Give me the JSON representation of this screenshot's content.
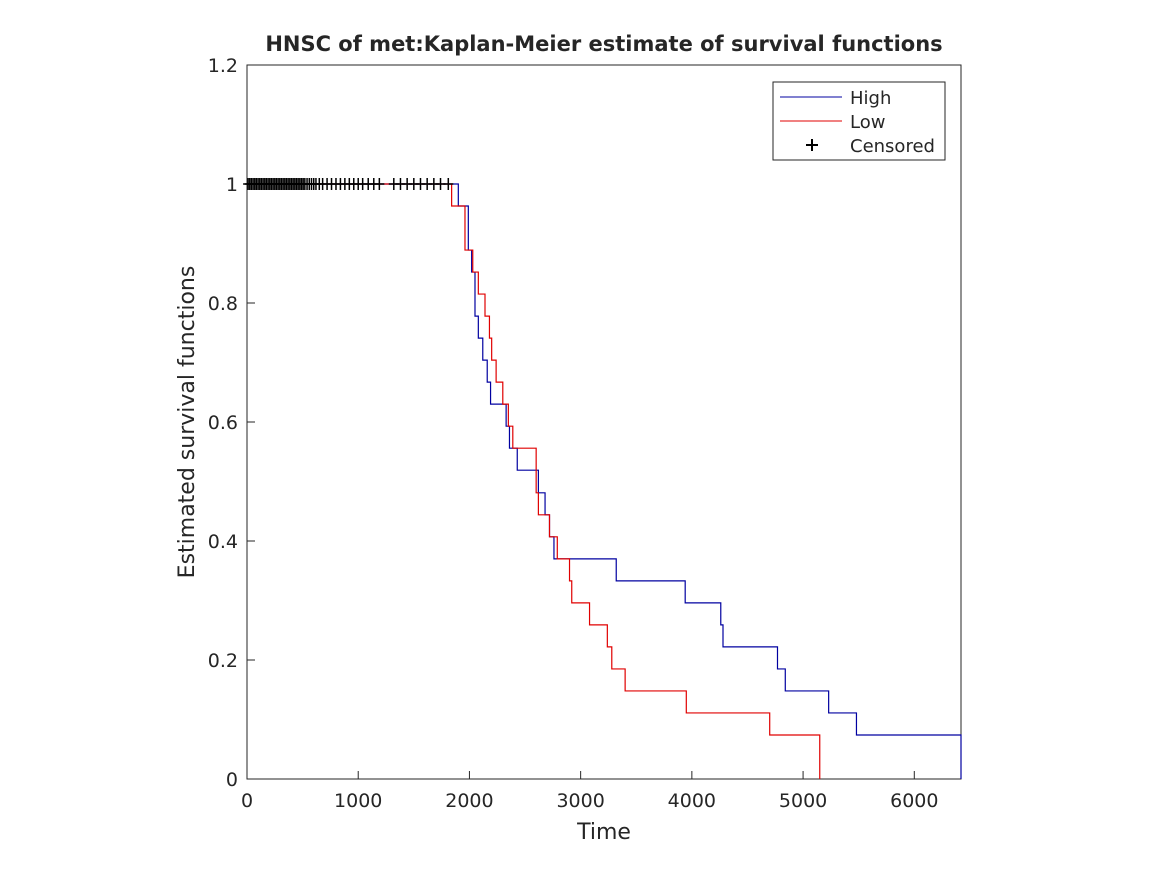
{
  "chart_data": {
    "type": "line",
    "subtype": "kaplan-meier-step",
    "title": "HNSC of met:Kaplan-Meier estimate of survival functions",
    "xlabel": "Time",
    "ylabel": "Estimated survival functions",
    "xlim": [
      0,
      6420
    ],
    "ylim": [
      0,
      1.2
    ],
    "x_ticks": [
      0,
      1000,
      2000,
      3000,
      4000,
      5000,
      6000
    ],
    "x_tick_labels": [
      "0",
      "1000",
      "2000",
      "3000",
      "4000",
      "5000",
      "6000"
    ],
    "y_ticks": [
      0,
      0.2,
      0.4,
      0.6,
      0.8,
      1.0,
      1.2
    ],
    "y_tick_labels": [
      "0",
      "0.2",
      "0.4",
      "0.6",
      "0.8",
      "1",
      "1.2"
    ],
    "grid": false,
    "legend_position": "top-right",
    "legend": [
      "High",
      "Low",
      "Censored"
    ],
    "series": [
      {
        "name": "High",
        "color": "#0000a0",
        "x": [
          0,
          1900,
          1990,
          2020,
          2050,
          2080,
          2120,
          2160,
          2190,
          2330,
          2360,
          2430,
          2620,
          2680,
          2720,
          2760,
          3320,
          3940,
          4260,
          4280,
          4770,
          4840,
          5230,
          5480,
          6420
        ],
        "y": [
          1.0,
          0.963,
          0.889,
          0.852,
          0.778,
          0.741,
          0.704,
          0.667,
          0.63,
          0.593,
          0.556,
          0.519,
          0.481,
          0.444,
          0.407,
          0.37,
          0.333,
          0.296,
          0.259,
          0.222,
          0.185,
          0.148,
          0.111,
          0.074,
          0.037
        ]
      },
      {
        "name": "Low",
        "color": "#e00000",
        "x": [
          0,
          1840,
          1960,
          2030,
          2080,
          2140,
          2180,
          2200,
          2240,
          2300,
          2350,
          2390,
          2600,
          2620,
          2720,
          2790,
          2900,
          2920,
          3080,
          3240,
          3280,
          3400,
          3950,
          4700,
          5150
        ],
        "y": [
          1.0,
          0.963,
          0.889,
          0.852,
          0.815,
          0.778,
          0.741,
          0.704,
          0.667,
          0.63,
          0.593,
          0.556,
          0.481,
          0.444,
          0.407,
          0.37,
          0.333,
          0.296,
          0.259,
          0.222,
          0.185,
          0.148,
          0.111,
          0.074,
          0.037
        ]
      }
    ],
    "censored": {
      "name": "Censored",
      "y": 1.0,
      "x": [
        10,
        25,
        40,
        55,
        70,
        85,
        100,
        115,
        130,
        145,
        160,
        175,
        190,
        205,
        220,
        235,
        250,
        265,
        280,
        295,
        310,
        325,
        340,
        355,
        370,
        385,
        400,
        415,
        430,
        445,
        460,
        475,
        490,
        505,
        520,
        540,
        560,
        580,
        600,
        620,
        650,
        680,
        720,
        760,
        800,
        840,
        880,
        920,
        960,
        1000,
        1040,
        1090,
        1140,
        1190,
        1320,
        1380,
        1440,
        1500,
        1560,
        1620,
        1680,
        1740,
        1810
      ]
    }
  }
}
